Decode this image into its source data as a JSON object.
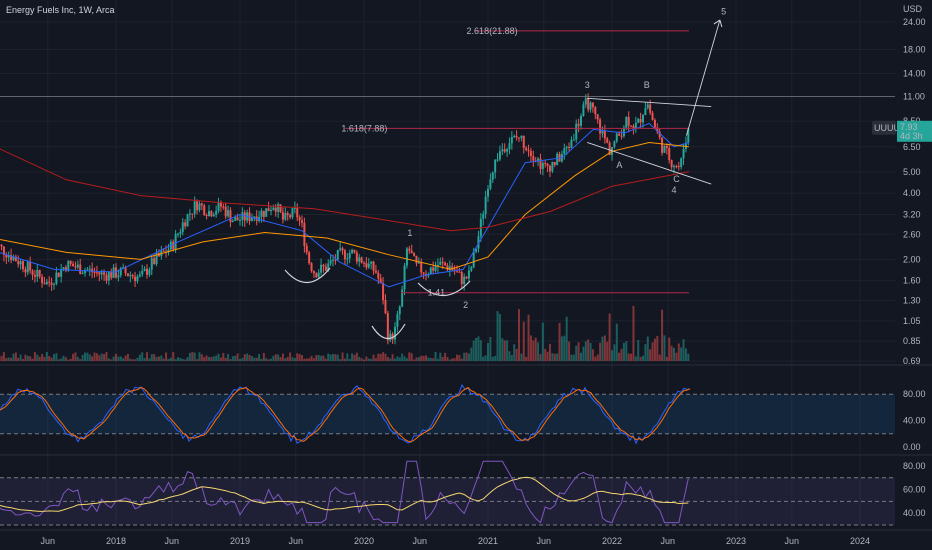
{
  "header": {
    "title": "Energy Fuels Inc, 1W, Arca"
  },
  "colors": {
    "bg": "#131722",
    "up": "#26a69a",
    "down": "#ef5350",
    "grid": "#1e222d",
    "ma20": "#2962ff",
    "ma50": "#ff9800",
    "ma200": "#b71c1c",
    "fib": "#b0284a",
    "wave": "#f7a735",
    "stochK": "#2962ff",
    "stochD": "#ff6d00",
    "rsi": "#7e57c2",
    "rsiMa": "#f5d76e"
  },
  "chart_data": {
    "type": "candlestick",
    "price_axis": {
      "currency": "USD",
      "ticks": [
        "24.00",
        "18.00",
        "14.00",
        "11.00",
        "8.50",
        "6.50",
        "5.00",
        "4.00",
        "3.20",
        "2.60",
        "2.00",
        "1.60",
        "1.30",
        "1.05",
        "0.85",
        "0.69"
      ],
      "scale": "log"
    },
    "time_axis": {
      "ticks": [
        "Jun",
        "2018",
        "Jun",
        "2019",
        "Jun",
        "2020",
        "Jun",
        "2021",
        "Jun",
        "2022",
        "Jun",
        "2023",
        "Jun",
        "2024"
      ]
    },
    "symbol": {
      "ticker": "UUUU",
      "last_price": "7.93",
      "countdown": "4d 3h"
    },
    "price_path": [
      [
        2017.0,
        2.4
      ],
      [
        2017.25,
        1.9
      ],
      [
        2017.45,
        1.55
      ],
      [
        2017.6,
        1.9
      ],
      [
        2017.75,
        1.8
      ],
      [
        2017.9,
        1.7
      ],
      [
        2018.05,
        1.75
      ],
      [
        2018.2,
        1.65
      ],
      [
        2018.3,
        1.95
      ],
      [
        2018.45,
        2.3
      ],
      [
        2018.55,
        3.0
      ],
      [
        2018.65,
        3.6
      ],
      [
        2018.75,
        3.3
      ],
      [
        2018.85,
        3.5
      ],
      [
        2018.95,
        3.0
      ],
      [
        2019.05,
        3.1
      ],
      [
        2019.2,
        3.3
      ],
      [
        2019.28,
        3.6
      ],
      [
        2019.35,
        3.0
      ],
      [
        2019.45,
        3.3
      ],
      [
        2019.5,
        2.8
      ],
      [
        2019.55,
        2.0
      ],
      [
        2019.6,
        1.75
      ],
      [
        2019.7,
        1.85
      ],
      [
        2019.8,
        2.1
      ],
      [
        2019.9,
        2.15
      ],
      [
        2020.0,
        1.95
      ],
      [
        2020.1,
        1.75
      ],
      [
        2020.15,
        1.4
      ],
      [
        2020.2,
        0.85
      ],
      [
        2020.25,
        0.95
      ],
      [
        2020.3,
        1.3
      ],
      [
        2020.35,
        2.3
      ],
      [
        2020.42,
        1.85
      ],
      [
        2020.5,
        1.75
      ],
      [
        2020.6,
        1.9
      ],
      [
        2020.7,
        1.85
      ],
      [
        2020.8,
        1.6
      ],
      [
        2020.85,
        1.7
      ],
      [
        2020.92,
        2.5
      ],
      [
        2020.96,
        3.3
      ],
      [
        2021.0,
        4.5
      ],
      [
        2021.08,
        6.0
      ],
      [
        2021.15,
        6.8
      ],
      [
        2021.25,
        7.2
      ],
      [
        2021.35,
        6.2
      ],
      [
        2021.45,
        5.2
      ],
      [
        2021.55,
        5.6
      ],
      [
        2021.65,
        6.5
      ],
      [
        2021.72,
        8.2
      ],
      [
        2021.8,
        10.5
      ],
      [
        2021.88,
        8.5
      ],
      [
        2021.92,
        7.5
      ],
      [
        2021.98,
        6.3
      ],
      [
        2022.05,
        7.2
      ],
      [
        2022.12,
        8.8
      ],
      [
        2022.2,
        8.0
      ],
      [
        2022.28,
        10.5
      ],
      [
        2022.33,
        8.5
      ],
      [
        2022.4,
        6.6
      ],
      [
        2022.48,
        5.6
      ],
      [
        2022.55,
        5.2
      ],
      [
        2022.58,
        6.6
      ],
      [
        2022.62,
        7.93
      ]
    ],
    "moving_averages": [
      {
        "key": "ma20",
        "path": [
          [
            2017.0,
            2.2
          ],
          [
            2017.5,
            1.8
          ],
          [
            2018.0,
            1.75
          ],
          [
            2018.5,
            2.4
          ],
          [
            2019.0,
            3.2
          ],
          [
            2019.5,
            2.7
          ],
          [
            2019.8,
            1.95
          ],
          [
            2020.2,
            1.5
          ],
          [
            2020.5,
            1.7
          ],
          [
            2020.8,
            1.8
          ],
          [
            2021.0,
            2.8
          ],
          [
            2021.3,
            5.5
          ],
          [
            2021.6,
            5.8
          ],
          [
            2021.85,
            7.8
          ],
          [
            2022.1,
            7.5
          ],
          [
            2022.3,
            8.3
          ],
          [
            2022.5,
            6.5
          ],
          [
            2022.62,
            6.8
          ]
        ]
      },
      {
        "key": "ma50",
        "path": [
          [
            2017.0,
            2.5
          ],
          [
            2017.6,
            2.15
          ],
          [
            2018.2,
            2.0
          ],
          [
            2018.7,
            2.4
          ],
          [
            2019.2,
            2.65
          ],
          [
            2019.7,
            2.5
          ],
          [
            2020.2,
            2.1
          ],
          [
            2020.7,
            1.8
          ],
          [
            2021.0,
            2.05
          ],
          [
            2021.3,
            3.2
          ],
          [
            2021.7,
            4.8
          ],
          [
            2022.0,
            6.2
          ],
          [
            2022.3,
            6.8
          ],
          [
            2022.62,
            6.5
          ]
        ]
      },
      {
        "key": "ma200",
        "path": [
          [
            2017.0,
            6.6
          ],
          [
            2017.6,
            4.6
          ],
          [
            2018.2,
            3.9
          ],
          [
            2018.9,
            3.6
          ],
          [
            2019.6,
            3.4
          ],
          [
            2020.2,
            3.0
          ],
          [
            2020.7,
            2.7
          ],
          [
            2021.0,
            2.8
          ],
          [
            2021.5,
            3.3
          ],
          [
            2022.0,
            4.3
          ],
          [
            2022.62,
            5.0
          ]
        ]
      }
    ],
    "fib_levels": [
      {
        "label": "2.618(21.88)",
        "price": 21.88,
        "x0": 2020.9,
        "x1": 2022.62
      },
      {
        "label": "1.618(7.88)",
        "price": 7.88,
        "x0": 2019.85,
        "x1": 2022.62
      },
      {
        "label": "1.41",
        "price": 1.41,
        "x0": 2020.3,
        "x1": 2022.62
      }
    ],
    "horizontal_line": {
      "price": 11.0
    },
    "wave_labels": [
      {
        "text": "1",
        "x": 2020.37,
        "price": 2.55
      },
      {
        "text": "2",
        "x": 2020.82,
        "price": 1.2
      },
      {
        "text": "3",
        "x": 2021.8,
        "price": 12.0
      },
      {
        "text": "B",
        "x": 2022.28,
        "price": 12.0
      },
      {
        "text": "A",
        "x": 2022.06,
        "price": 5.2
      },
      {
        "text": "C",
        "x": 2022.52,
        "price": 4.5
      },
      {
        "text": "4",
        "x": 2022.5,
        "price": 4.0
      },
      {
        "text": "5",
        "x": 2022.9,
        "price": 26.0
      }
    ],
    "trend_lines": [
      [
        [
          2021.8,
          10.8
        ],
        [
          2022.8,
          9.9
        ]
      ],
      [
        [
          2021.8,
          6.8
        ],
        [
          2022.8,
          4.4
        ]
      ],
      [
        [
          2022.6,
          7.3
        ],
        [
          2022.87,
          24.5
        ]
      ]
    ],
    "stochastic": {
      "ticks": [
        "80.00",
        "40.00",
        "0.00"
      ],
      "band": [
        20,
        80
      ]
    },
    "rsi": {
      "ticks": [
        "80.00",
        "60.00",
        "40.00"
      ],
      "band": [
        30,
        70
      ]
    }
  }
}
